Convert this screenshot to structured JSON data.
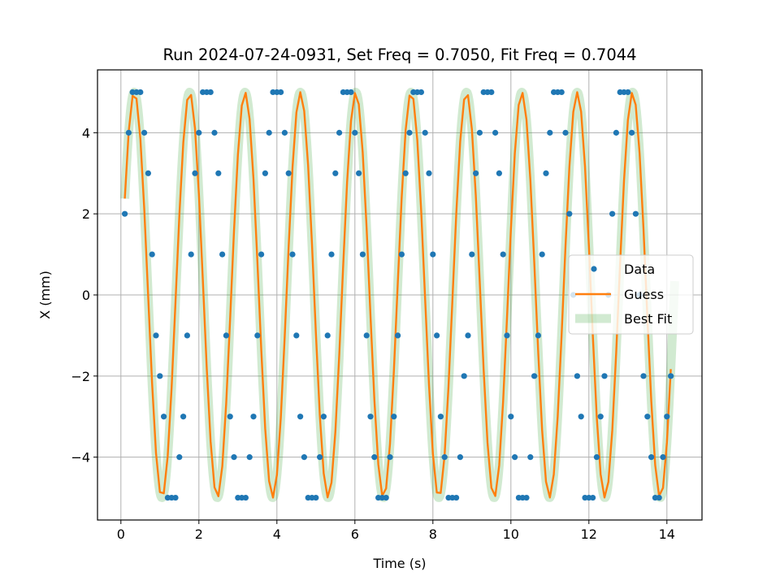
{
  "chart_data": {
    "type": "line",
    "title": "Run 2024-07-24-0931, Set Freq = 0.7050, Fit Freq = 0.7044",
    "xlabel": "Time (s)",
    "ylabel": "X (mm)",
    "xlim": [
      -0.6,
      14.9
    ],
    "ylim": [
      -5.55,
      5.55
    ],
    "x_ticks": [
      0,
      2,
      4,
      6,
      8,
      10,
      12,
      14
    ],
    "x_tick_labels": [
      "0",
      "2",
      "4",
      "6",
      "8",
      "10",
      "12",
      "14"
    ],
    "y_ticks": [
      -4,
      -2,
      0,
      2,
      4
    ],
    "y_tick_labels": [
      "−4",
      "−2",
      "0",
      "2",
      "4"
    ],
    "grid": true,
    "legend_position": "right",
    "series": [
      {
        "name": "Data",
        "style": "markers",
        "color": "#1f77b4"
      },
      {
        "name": "Guess",
        "style": "line",
        "color": "#ff7f0e"
      },
      {
        "name": "Best Fit",
        "style": "thick-line",
        "color": "#2ca02c"
      }
    ],
    "model": {
      "amplitude_mm": 5.0,
      "freq_hz": 0.7044,
      "phase_rad": 0.0524,
      "t_start": 0.1,
      "t_end": 14.2
    },
    "sample_interval_s": 0.1,
    "data_y": [
      2,
      4,
      5,
      5,
      5,
      4,
      3,
      1,
      -1,
      -2,
      -3,
      -5,
      -5,
      -5,
      -4,
      -3,
      -1,
      1,
      3,
      4,
      5,
      5,
      5,
      4,
      3,
      1,
      -1,
      -3,
      -4,
      -5,
      -5,
      -5,
      -4,
      -3,
      -1,
      1,
      3,
      4,
      5,
      5,
      5,
      4,
      3,
      1,
      -1,
      -3,
      -4,
      -5,
      -5,
      -5,
      -4,
      -3,
      -1,
      1,
      3,
      4,
      5,
      5,
      5,
      4,
      3,
      1,
      -1,
      -3,
      -4,
      -5,
      -5,
      -5,
      -4,
      -3,
      -1,
      1,
      3,
      4,
      5,
      5,
      5,
      4,
      3,
      1,
      -1,
      -3,
      -4,
      -5,
      -5,
      -5,
      -4,
      -2,
      -1,
      1,
      3,
      4,
      5,
      5,
      5,
      4,
      3,
      1,
      -1,
      -3,
      -4,
      -5,
      -5,
      -5,
      -4,
      -2,
      -1,
      1,
      3,
      4,
      5,
      5,
      5,
      4,
      2,
      0,
      -2,
      -3,
      -5,
      -5,
      -5,
      -4,
      -3,
      -2,
      0,
      2,
      4,
      5,
      5,
      5,
      4,
      2,
      0,
      -2,
      -3,
      -4,
      -5,
      -5,
      -4,
      -3,
      -2
    ]
  }
}
